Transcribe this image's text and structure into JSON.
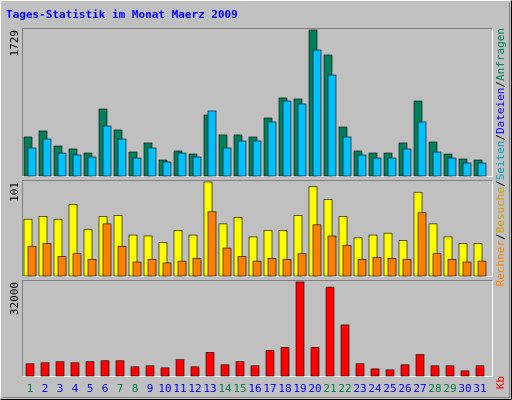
{
  "chart_data": [
    {
      "type": "bar",
      "title": "Tages-Statistik im Monat Maerz 2009",
      "ylim": [
        0,
        1729
      ],
      "yticks": [
        1729
      ],
      "series": [
        {
          "name": "Anfragen",
          "color": "#00805c",
          "values": [
            462,
            533,
            355,
            320,
            272,
            793,
            545,
            284,
            391,
            189,
            296,
            260,
            722,
            486,
            486,
            462,
            687,
            924,
            912,
            1729,
            1433,
            580,
            296,
            272,
            272,
            391,
            888,
            403,
            260,
            201,
            189
          ]
        },
        {
          "name": "Dateien",
          "color": "#00c0ff",
          "values": [
            332,
            438,
            272,
            249,
            225,
            592,
            438,
            213,
            332,
            166,
            272,
            225,
            770,
            332,
            415,
            415,
            640,
            888,
            853,
            1492,
            1196,
            462,
            249,
            213,
            213,
            320,
            640,
            284,
            213,
            154,
            154
          ]
        }
      ],
      "extra_label": {
        "text": "Seiten",
        "color": "#00a0c0"
      }
    },
    {
      "type": "bar",
      "ylim": [
        0,
        101
      ],
      "yticks": [
        101
      ],
      "series": [
        {
          "name": "Besuche",
          "color": "#ffff00",
          "values": [
            61,
            64,
            61,
            77,
            50,
            64,
            65,
            44,
            43,
            36,
            49,
            44,
            101,
            56,
            63,
            42,
            49,
            49,
            65,
            96,
            82,
            64,
            41,
            44,
            46,
            38,
            90,
            56,
            42,
            35,
            35
          ]
        },
        {
          "name": "Rechner",
          "color": "#ff8000",
          "values": [
            32,
            35,
            21,
            24,
            18,
            56,
            32,
            15,
            18,
            14,
            16,
            19,
            69,
            30,
            21,
            16,
            19,
            18,
            24,
            55,
            43,
            33,
            18,
            20,
            19,
            18,
            68,
            24,
            18,
            15,
            16
          ]
        }
      ]
    },
    {
      "type": "bar",
      "ylim": [
        0,
        32000
      ],
      "yticks": [
        32000
      ],
      "series": [
        {
          "name": "Kb",
          "color": "#ff0000",
          "values": [
            4170,
            4520,
            4870,
            4520,
            4870,
            5220,
            5220,
            3130,
            3480,
            2780,
            5560,
            3130,
            8000,
            3830,
            4870,
            3480,
            8700,
            9740,
            32000,
            9740,
            30260,
            17390,
            4170,
            2430,
            2090,
            3830,
            7300,
            3480,
            3480,
            1740,
            3480
          ]
        }
      ],
      "categories": [
        "1",
        "2",
        "3",
        "4",
        "5",
        "6",
        "7",
        "8",
        "9",
        "10",
        "11",
        "12",
        "13",
        "14",
        "15",
        "16",
        "17",
        "18",
        "19",
        "20",
        "21",
        "22",
        "23",
        "24",
        "25",
        "26",
        "27",
        "28",
        "29",
        "30",
        "31"
      ],
      "category_colors": [
        "#008040",
        "#0000ff",
        "#0000ff",
        "#0000ff",
        "#0000ff",
        "#0000ff",
        "#008040",
        "#008040",
        "#0000ff",
        "#0000ff",
        "#0000ff",
        "#0000ff",
        "#0000ff",
        "#008040",
        "#008040",
        "#0000ff",
        "#0000ff",
        "#0000ff",
        "#0000ff",
        "#0000ff",
        "#008040",
        "#008040",
        "#0000ff",
        "#0000ff",
        "#0000ff",
        "#0000ff",
        "#0000ff",
        "#008040",
        "#008040",
        "#0000ff",
        "#0000ff"
      ]
    }
  ],
  "separator": "/"
}
